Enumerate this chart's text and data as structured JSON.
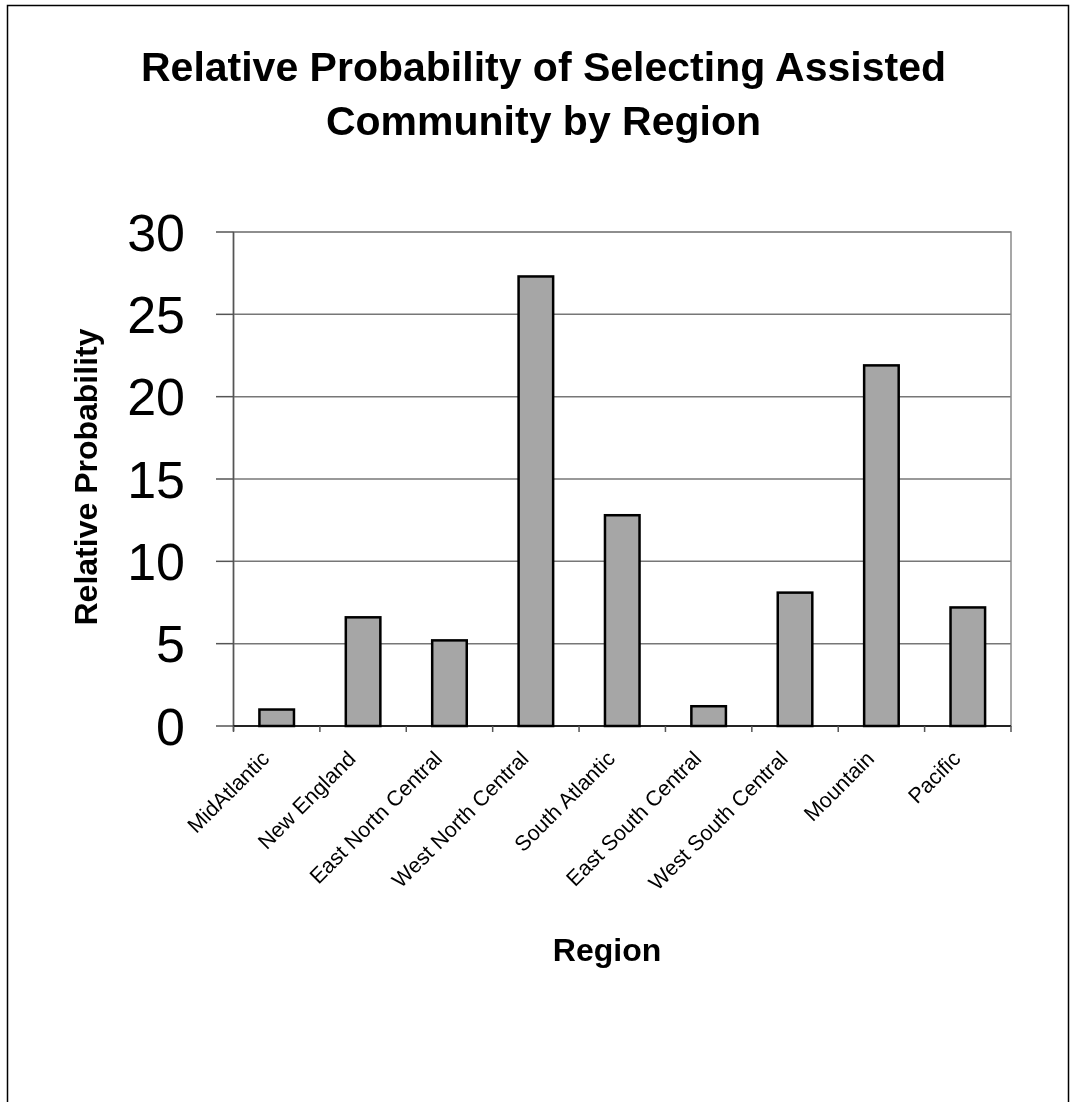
{
  "chart_data": {
    "type": "bar",
    "title": "Relative Probability of Selecting Assisted Community by Region",
    "xlabel": "Region",
    "ylabel": "Relative Probability",
    "categories": [
      "MidAtlantic",
      "New England",
      "East Nortn Central",
      "West North Central",
      "South Atlantic",
      "East South Central",
      "West South Central",
      "Mountain",
      "Pacific"
    ],
    "values": [
      1.0,
      6.6,
      5.2,
      27.3,
      12.8,
      1.2,
      8.1,
      21.9,
      7.2
    ],
    "color": "#a6a6a6",
    "ylim": [
      0,
      30
    ],
    "yticks": [
      0,
      5,
      10,
      15,
      20,
      25,
      30
    ],
    "grid": "y"
  }
}
